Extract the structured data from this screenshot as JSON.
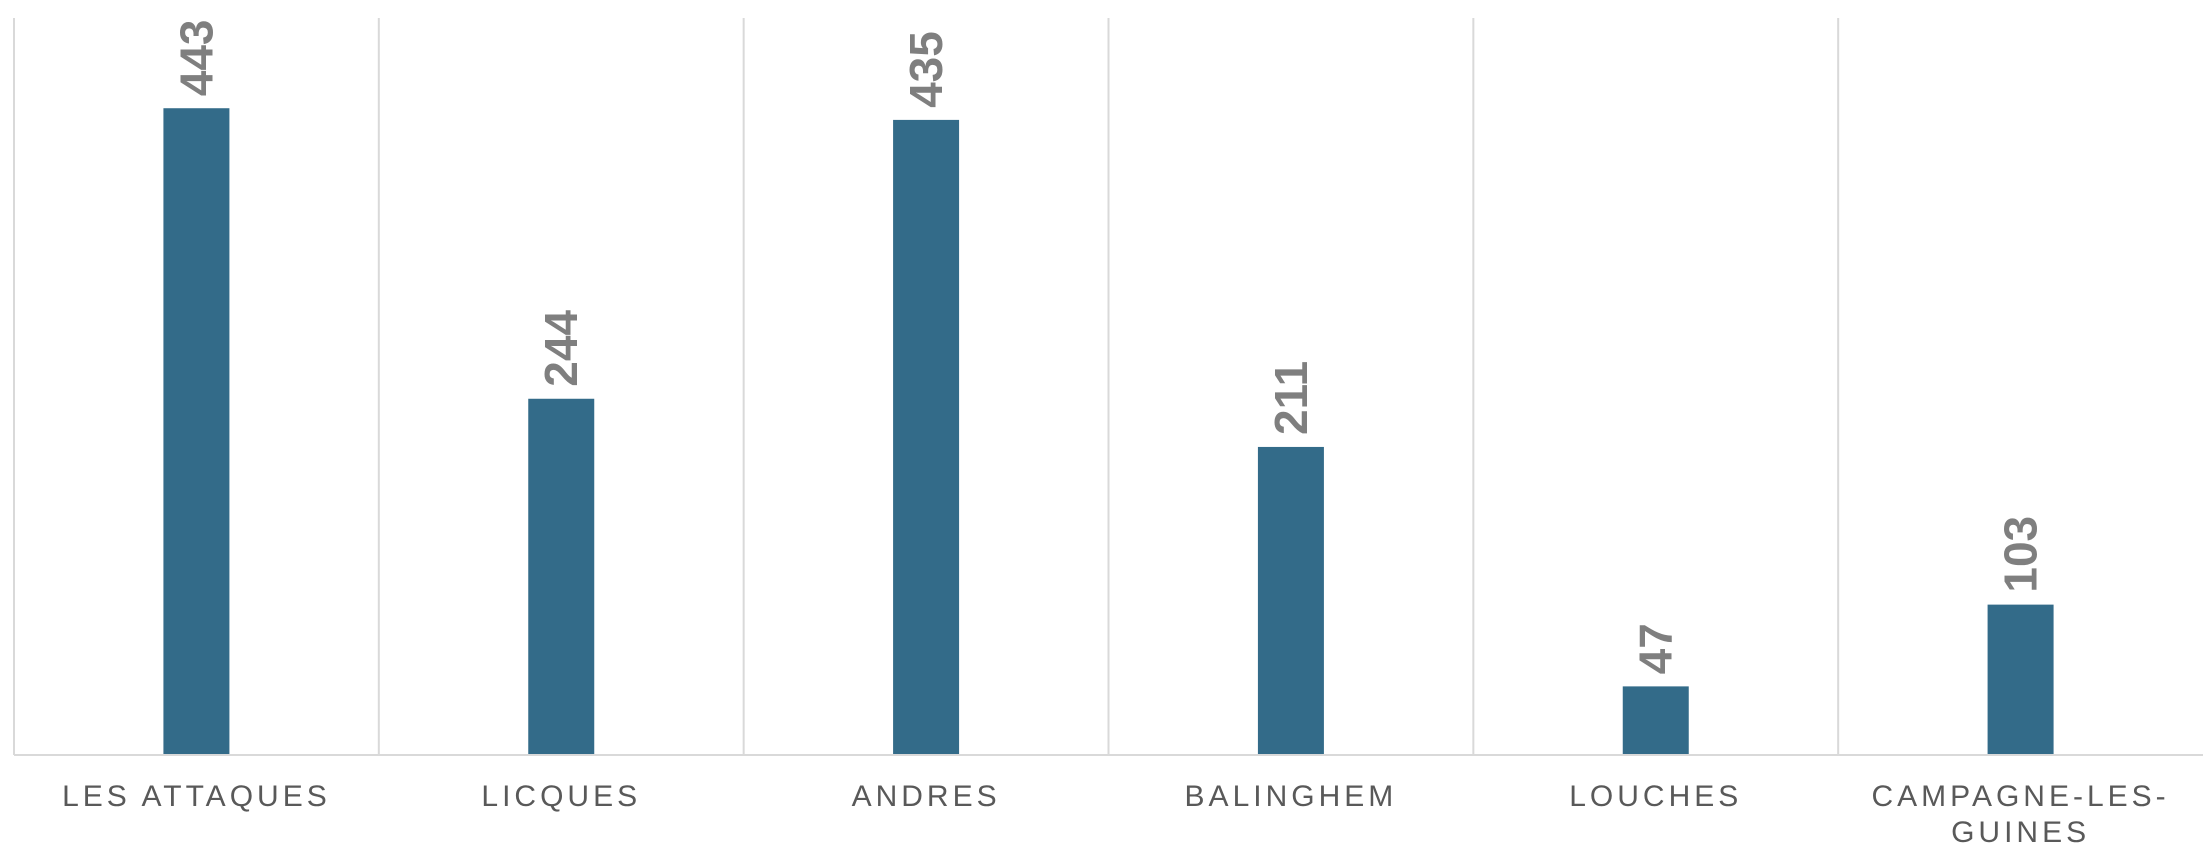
{
  "chart_data": {
    "type": "bar",
    "categories": [
      "LES ATTAQUES",
      "LICQUES",
      "ANDRES",
      "BALINGHEM",
      "LOUCHES",
      "CAMPAGNE-LES-GUINES"
    ],
    "category_lines": [
      [
        "LES ATTAQUES"
      ],
      [
        "LICQUES"
      ],
      [
        "ANDRES"
      ],
      [
        "BALINGHEM"
      ],
      [
        "LOUCHES"
      ],
      [
        "CAMPAGNE-LES-",
        "GUINES"
      ]
    ],
    "values": [
      443,
      244,
      435,
      211,
      47,
      103
    ],
    "ylim": [
      0,
      500
    ],
    "title": "",
    "xlabel": "",
    "ylabel": "",
    "grid": "vertical category separators",
    "legend": "none",
    "data_labels": "rotated above bars",
    "bar_color": "#336b89",
    "label_color": "#7f7f7f",
    "axis_color": "#d9d9d9"
  }
}
